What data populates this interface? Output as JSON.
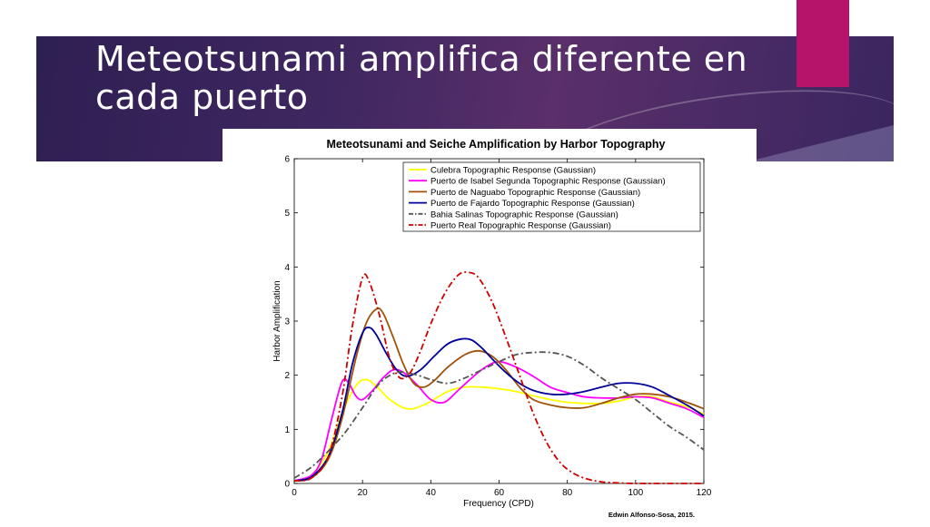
{
  "slide": {
    "title": "Meteotsunami amplifica diferente en cada puerto",
    "credit": "Edwin Alfonso-Sosa, 2015.",
    "colors": {
      "band": "#3f2760",
      "accent": "#b5146a"
    }
  },
  "chart_data": {
    "type": "line",
    "title": "Meteotsunami and Seiche Amplification by Harbor Topography",
    "xlabel": "Frequency (CPD)",
    "ylabel": "Harbor Amplification",
    "xlim": [
      0,
      120
    ],
    "ylim": [
      0,
      6
    ],
    "xticks": [
      0,
      20,
      40,
      60,
      80,
      100,
      120
    ],
    "yticks": [
      0,
      1,
      2,
      3,
      4,
      5,
      6
    ],
    "grid": false,
    "legend_position": "top-right",
    "series": [
      {
        "name": "Culebra Topographic Response (Gaussian)",
        "color": "#ffff00",
        "dash": "solid",
        "x": [
          0,
          5,
          10,
          14,
          18,
          21,
          24,
          28,
          33,
          38,
          45,
          50,
          55,
          60,
          65,
          70,
          75,
          80,
          85,
          90,
          95,
          100,
          105,
          110,
          115,
          120
        ],
        "y": [
          0.05,
          0.15,
          0.6,
          1.3,
          1.8,
          1.92,
          1.8,
          1.55,
          1.38,
          1.45,
          1.7,
          1.78,
          1.78,
          1.75,
          1.7,
          1.62,
          1.55,
          1.5,
          1.48,
          1.48,
          1.52,
          1.6,
          1.6,
          1.5,
          1.42,
          1.28
        ]
      },
      {
        "name": "Puerto de Isabel Segunda Topographic Response (Gaussian)",
        "color": "#ff00ff",
        "dash": "solid",
        "x": [
          0,
          5,
          8,
          11,
          14,
          16,
          18,
          20,
          23,
          26,
          29,
          32,
          36,
          40,
          44,
          48,
          52,
          56,
          60,
          65,
          70,
          75,
          80,
          85,
          90,
          95,
          100,
          105,
          110,
          115,
          120
        ],
        "y": [
          0.05,
          0.15,
          0.45,
          1.2,
          1.88,
          1.85,
          1.62,
          1.55,
          1.72,
          1.95,
          2.1,
          2.05,
          1.82,
          1.55,
          1.5,
          1.72,
          1.95,
          2.15,
          2.25,
          2.15,
          1.98,
          1.78,
          1.68,
          1.6,
          1.58,
          1.58,
          1.6,
          1.58,
          1.48,
          1.38,
          1.22
        ]
      },
      {
        "name": "Puerto de Naguabo Topographic Response (Gaussian)",
        "color": "#a0520a",
        "dash": "solid",
        "x": [
          0,
          5,
          10,
          14,
          18,
          21,
          24,
          26,
          29,
          32,
          35,
          38,
          41,
          45,
          50,
          54,
          58,
          62,
          66,
          70,
          75,
          80,
          85,
          90,
          95,
          100,
          105,
          110,
          115,
          120
        ],
        "y": [
          0.05,
          0.1,
          0.45,
          1.2,
          2.3,
          2.95,
          3.22,
          3.15,
          2.7,
          2.2,
          1.85,
          1.78,
          1.9,
          2.15,
          2.38,
          2.45,
          2.35,
          2.1,
          1.78,
          1.55,
          1.45,
          1.4,
          1.4,
          1.48,
          1.58,
          1.65,
          1.65,
          1.6,
          1.5,
          1.38
        ]
      },
      {
        "name": "Puerto de Fajardo Topographic Response (Gaussian)",
        "color": "#00009a",
        "dash": "solid",
        "x": [
          0,
          5,
          10,
          14,
          17,
          20,
          22,
          24,
          27,
          30,
          33,
          37,
          41,
          45,
          49,
          52,
          55,
          58,
          62,
          66,
          70,
          75,
          80,
          85,
          90,
          95,
          100,
          105,
          110,
          115,
          120
        ],
        "y": [
          0.05,
          0.12,
          0.5,
          1.3,
          2.2,
          2.78,
          2.88,
          2.75,
          2.4,
          2.1,
          1.98,
          2.1,
          2.35,
          2.58,
          2.67,
          2.65,
          2.5,
          2.3,
          2.05,
          1.85,
          1.72,
          1.65,
          1.65,
          1.7,
          1.78,
          1.85,
          1.85,
          1.78,
          1.62,
          1.45,
          1.25
        ]
      },
      {
        "name": "Bahia Salinas Topographic Response (Gaussian)",
        "color": "#555555",
        "dash": "dashdot",
        "x": [
          0,
          5,
          10,
          15,
          20,
          25,
          30,
          35,
          40,
          45,
          50,
          55,
          60,
          65,
          70,
          75,
          80,
          85,
          90,
          95,
          100,
          105,
          110,
          115,
          120
        ],
        "y": [
          0.1,
          0.3,
          0.6,
          0.95,
          1.4,
          1.85,
          2.05,
          2.02,
          1.92,
          1.85,
          1.95,
          2.1,
          2.25,
          2.38,
          2.42,
          2.42,
          2.35,
          2.18,
          1.95,
          1.75,
          1.55,
          1.3,
          1.05,
          0.85,
          0.62
        ]
      },
      {
        "name": "Puerto Real Topographic Response (Gaussian)",
        "color": "#cc0000",
        "dash": "dashdot",
        "x": [
          0,
          5,
          10,
          14,
          17,
          20,
          22,
          25,
          28,
          31,
          34,
          37,
          40,
          44,
          48,
          51,
          54,
          58,
          62,
          66,
          70,
          74,
          78,
          82,
          86,
          90,
          95,
          100,
          110,
          120
        ],
        "y": [
          0.05,
          0.1,
          0.5,
          1.6,
          2.9,
          3.8,
          3.72,
          3.1,
          2.3,
          1.95,
          2.05,
          2.45,
          2.95,
          3.5,
          3.85,
          3.9,
          3.8,
          3.35,
          2.7,
          2.0,
          1.3,
          0.75,
          0.38,
          0.18,
          0.08,
          0.03,
          0.01,
          0.0,
          0.0,
          0.0
        ]
      }
    ]
  }
}
